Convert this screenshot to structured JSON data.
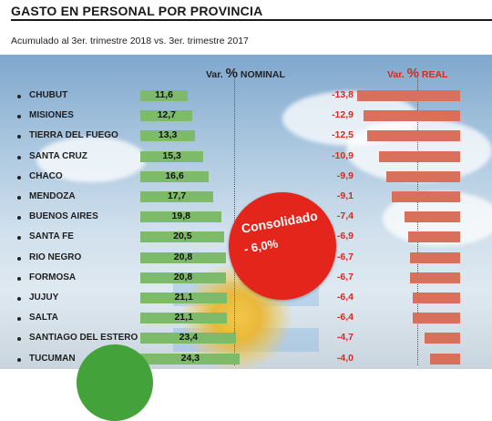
{
  "header": {
    "title": "GASTO EN PERSONAL POR PROVINCIA",
    "subtitle": "Acumulado al 3er. trimestre 2018 vs. 3er. trimestre 2017"
  },
  "columns": {
    "nominal_prefix": "Var.",
    "nominal_pct": "%",
    "nominal_suffix": "NOMINAL",
    "real_prefix": "Var.",
    "real_pct": "%",
    "real_suffix": "REAL"
  },
  "badge": {
    "line1": "Consolidado",
    "line2": "- 6,0%"
  },
  "colors": {
    "nominal_bar": "#7dbb6a",
    "real_bar": "#d9705c",
    "real_text": "#d22b22",
    "badge": "#e3251c",
    "accent_green": "#43a33a"
  },
  "chart_data": {
    "type": "bar",
    "title": "GASTO EN PERSONAL POR PROVINCIA",
    "subtitle": "Acumulado al 3er. trimestre 2018 vs. 3er. trimestre 2017",
    "orientation": "horizontal",
    "categories": [
      "CHUBUT",
      "MISIONES",
      "TIERRA DEL FUEGO",
      "SANTA CRUZ",
      "CHACO",
      "MENDOZA",
      "BUENOS AIRES",
      "SANTA FE",
      "RIO NEGRO",
      "FORMOSA",
      "JUJUY",
      "SALTA",
      "SANTIAGO DEL ESTERO",
      "TUCUMAN"
    ],
    "series": [
      {
        "name": "Var. % NOMINAL",
        "values": [
          11.6,
          12.7,
          13.3,
          15.3,
          16.6,
          17.7,
          19.8,
          20.5,
          20.8,
          20.8,
          21.1,
          21.1,
          23.4,
          24.3
        ],
        "labels": [
          "11,6",
          "12,7",
          "13,3",
          "15,3",
          "16,6",
          "17,7",
          "19,8",
          "20,5",
          "20,8",
          "20,8",
          "21,1",
          "21,1",
          "23,4",
          "24,3"
        ]
      },
      {
        "name": "Var. % REAL",
        "values": [
          -13.8,
          -12.9,
          -12.5,
          -10.9,
          -9.9,
          -9.1,
          -7.4,
          -6.9,
          -6.7,
          -6.7,
          -6.4,
          -6.4,
          -4.7,
          -4.0
        ],
        "labels": [
          "-13,8",
          "-12,9",
          "-12,5",
          "-10,9",
          "-9,9",
          "-9,1",
          "-7,4",
          "-6,9",
          "-6,7",
          "-6,7",
          "-6,4",
          "-6,4",
          "-4,7",
          "-4,0"
        ]
      }
    ],
    "annotation": "Consolidado - 6,0%",
    "grid": false,
    "legend": "none"
  }
}
